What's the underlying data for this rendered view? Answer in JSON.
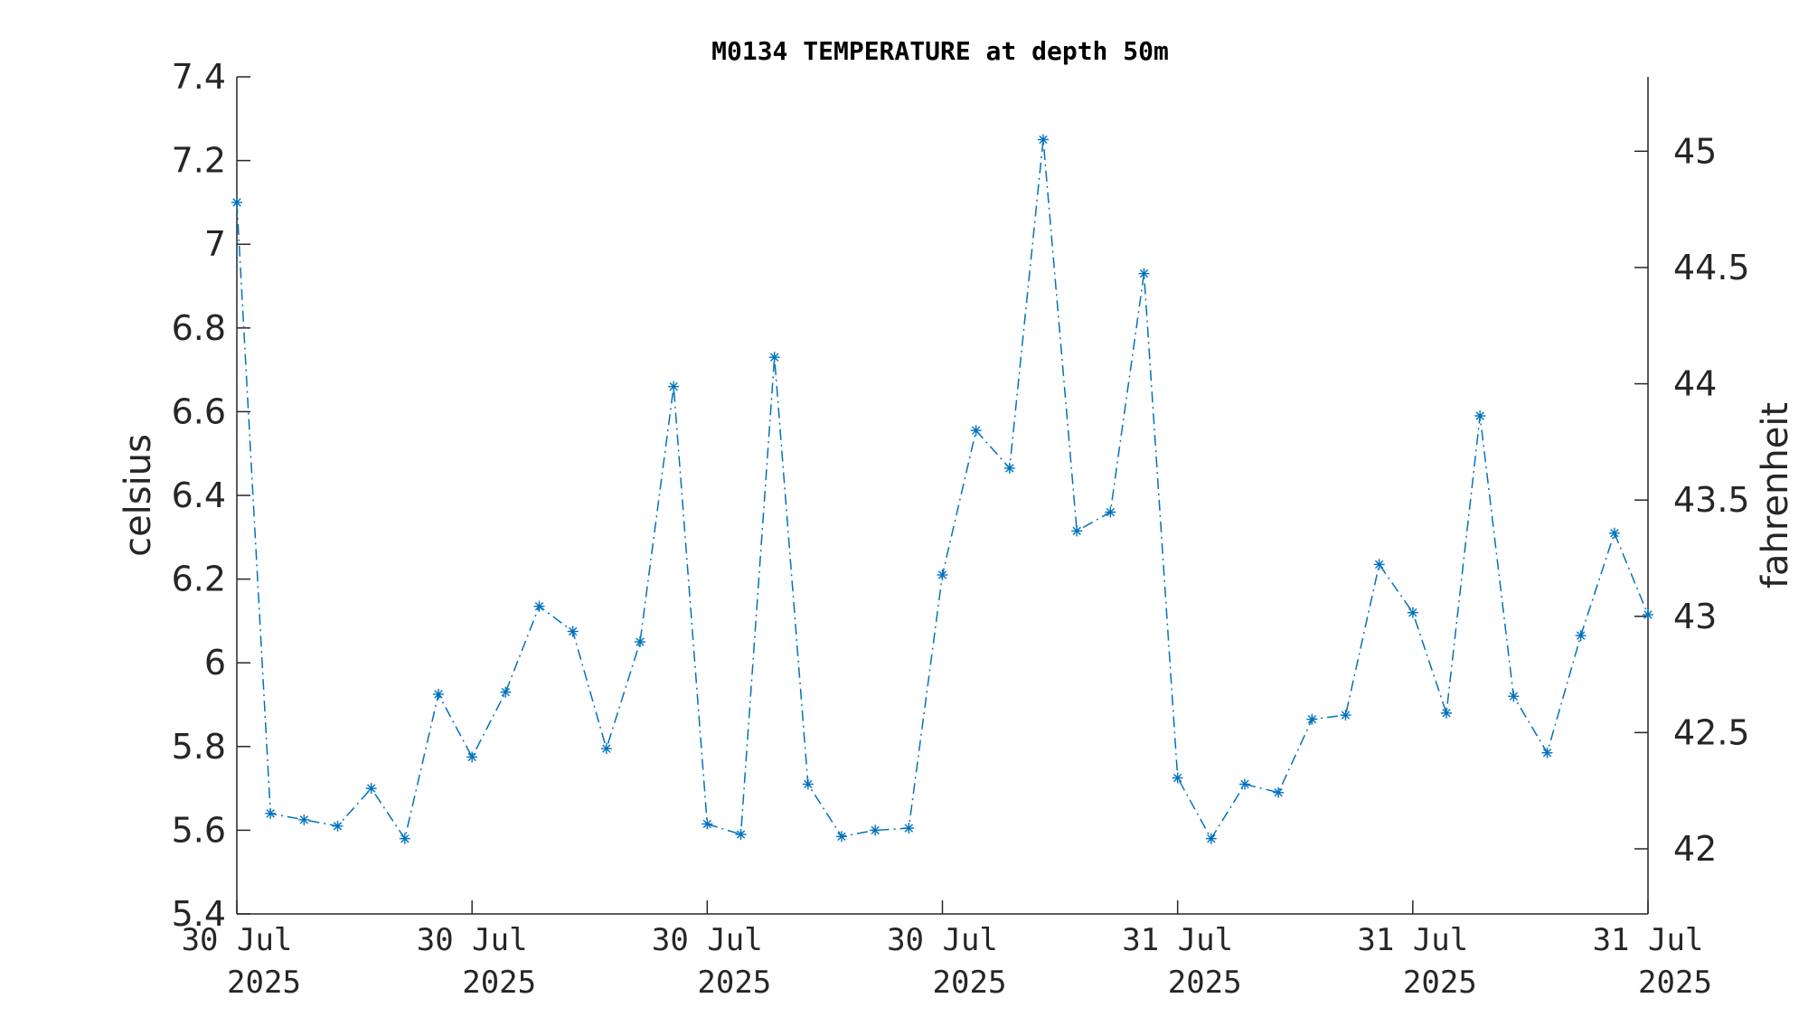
{
  "chart_data": {
    "type": "line",
    "title": "M0134 TEMPERATURE at depth 50m",
    "ylabel_left": "celsius",
    "ylabel_right": "fahrenheit",
    "ylim_left": [
      5.4,
      7.4
    ],
    "ylim_right": [
      41.72,
      45.32
    ],
    "yticks_left": [
      "5.4",
      "5.6",
      "5.8",
      "6",
      "6.2",
      "6.4",
      "6.6",
      "6.8",
      "7",
      "7.2",
      "7.4"
    ],
    "yticks_right": [
      "42",
      "42.5",
      "43",
      "43.5",
      "44",
      "44.5",
      "45"
    ],
    "xtick_labels": [
      [
        "30 Jul",
        "2025"
      ],
      [
        "30 Jul",
        "2025"
      ],
      [
        "30 Jul",
        "2025"
      ],
      [
        "30 Jul",
        "2025"
      ],
      [
        "31 Jul",
        "2025"
      ],
      [
        "31 Jul",
        "2025"
      ],
      [
        "31 Jul",
        "2025"
      ]
    ],
    "grid": false,
    "line_style": "dash-dot",
    "marker": "asterisk",
    "color": "#0072BD",
    "series": [
      {
        "values": [
          7.1,
          5.64,
          5.625,
          5.61,
          5.7,
          5.58,
          5.925,
          5.775,
          5.93,
          6.135,
          6.075,
          5.795,
          6.05,
          6.66,
          5.615,
          5.59,
          6.73,
          5.71,
          5.585,
          5.6,
          5.605,
          6.21,
          6.555,
          6.465,
          7.25,
          6.315,
          6.36,
          6.93,
          5.725,
          5.58,
          5.71,
          5.69,
          5.865,
          5.875,
          6.235,
          6.12,
          5.88,
          6.59,
          5.92,
          5.785,
          6.065,
          6.31,
          6.115
        ]
      }
    ]
  }
}
